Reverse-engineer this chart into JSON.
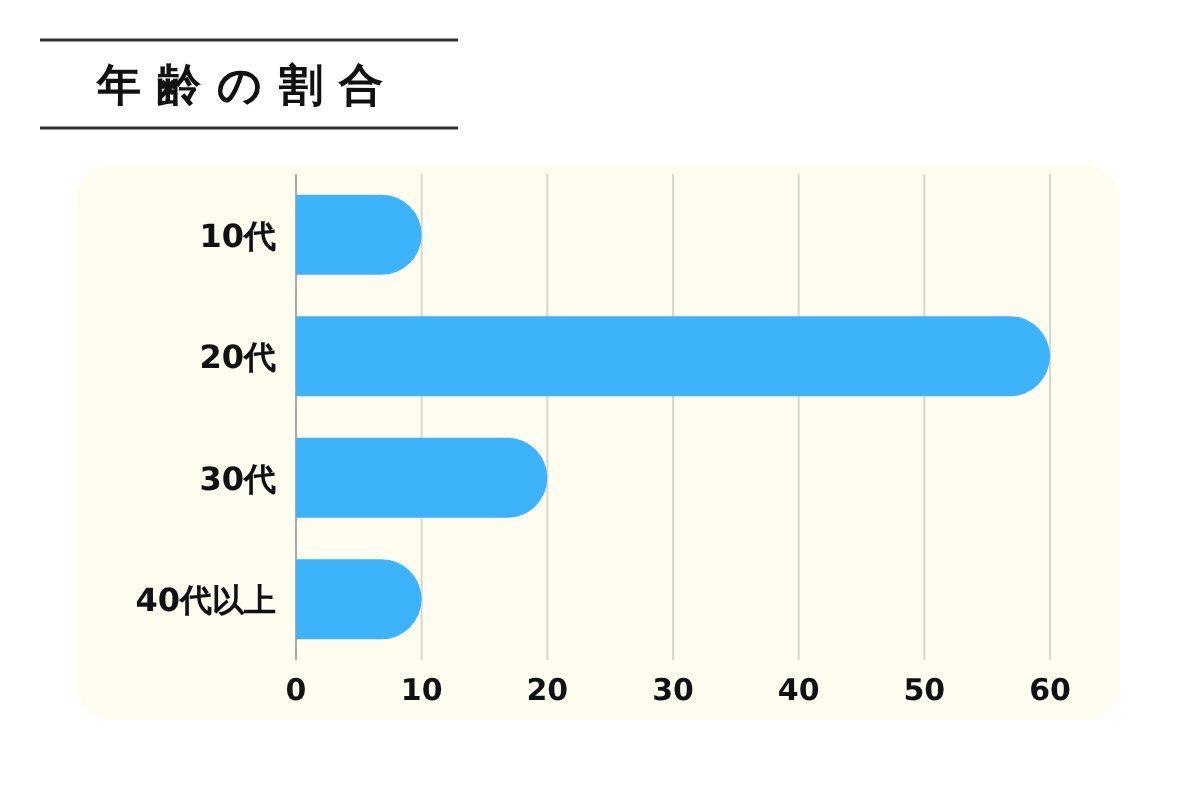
{
  "chart_data": {
    "type": "bar",
    "title": "年齢の割合",
    "orientation": "horizontal",
    "categories": [
      "10代",
      "20代",
      "30代",
      "40代以上"
    ],
    "values": [
      10,
      60,
      20,
      10
    ],
    "color": "#3db3fb",
    "xlim": [
      0,
      60
    ],
    "xticks": [
      0,
      10,
      20,
      30,
      40,
      50,
      60
    ],
    "grid": "x"
  }
}
